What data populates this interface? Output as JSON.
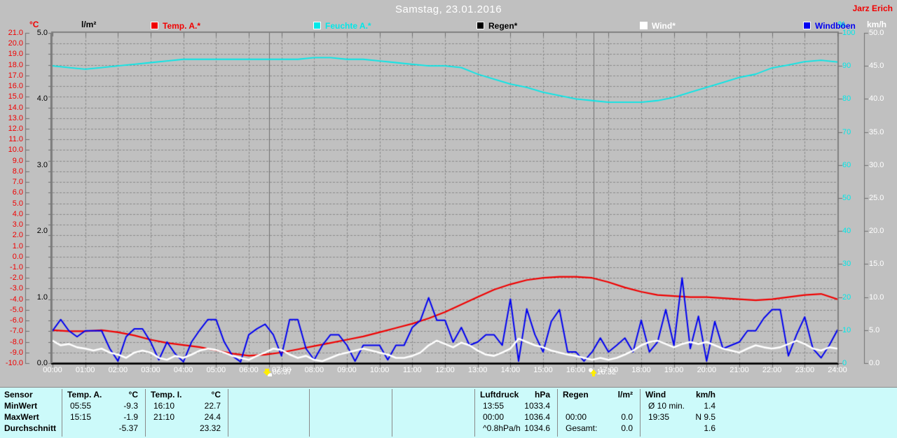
{
  "titlebar": {
    "title": "Samstag, 23.01.2016",
    "author": "Jarz Erich"
  },
  "legend": {
    "left_units": [
      {
        "text": "°C",
        "color": "#f00000"
      },
      {
        "text": "l/m²",
        "color": "#000000"
      }
    ],
    "right_units": [
      {
        "text": "%",
        "color": "#00e8e8"
      },
      {
        "text": "km/h",
        "color": "#ffffff"
      }
    ],
    "items": [
      {
        "label": "Temp. A.*",
        "color": "#f00000"
      },
      {
        "label": "Feuchte A.*",
        "color": "#00e8e8"
      },
      {
        "label": "Regen*",
        "color": "#000000"
      },
      {
        "label": "Wind*",
        "color": "#ffffff"
      },
      {
        "label": "Windböen",
        "color": "#0000f0"
      }
    ]
  },
  "axes": {
    "temp": {
      "color": "#f00000",
      "min": -10,
      "max": 21,
      "labels": [
        "21.0",
        "20.0",
        "19.0",
        "18.0",
        "17.0",
        "16.0",
        "15.0",
        "14.0",
        "13.0",
        "12.0",
        "11.0",
        "10.0",
        "9.0",
        "8.0",
        "7.0",
        "6.0",
        "5.0",
        "4.0",
        "3.0",
        "2.0",
        "1.0",
        "0.0",
        "-1.0",
        "-2.0",
        "-3.0",
        "-4.0",
        "-5.0",
        "-6.0",
        "-7.0",
        "-8.0",
        "-9.0",
        "-10.0"
      ]
    },
    "rain": {
      "color": "#000000",
      "min": 0,
      "max": 5,
      "labels": [
        "5.0",
        "4.0",
        "3.0",
        "2.0",
        "1.0",
        "0.0"
      ]
    },
    "humidity": {
      "color": "#00e8e8",
      "min": 0,
      "max": 100,
      "labels": [
        "100",
        "90",
        "80",
        "70",
        "60",
        "50",
        "40",
        "30",
        "20",
        "10",
        "0"
      ]
    },
    "wind": {
      "color": "#ffffff",
      "min": 0,
      "max": 50,
      "labels": [
        "50.0",
        "45.0",
        "40.0",
        "35.0",
        "30.0",
        "25.0",
        "20.0",
        "15.0",
        "10.0",
        "5.0",
        "0.0"
      ]
    },
    "x": {
      "labels": [
        "00:00",
        "01:00",
        "02:00",
        "03:00",
        "04:00",
        "05:00",
        "06:00",
        "07:00",
        "08:00",
        "09:00",
        "10:00",
        "11:00",
        "12:00",
        "13:00",
        "14:00",
        "15:00",
        "16:00",
        "17:00",
        "18:00",
        "19:00",
        "20:00",
        "21:00",
        "22:00",
        "23:00",
        "24:00"
      ]
    }
  },
  "markers": {
    "sunrise": {
      "time": "06:37",
      "hours": 6.617
    },
    "sunset": {
      "time": "16:32",
      "hours": 16.533
    }
  },
  "chart_data": {
    "type": "line",
    "title": "Samstag, 23.01.2016",
    "x_range_hours": [
      0,
      24
    ],
    "axis_ranges": {
      "temp_c": [
        -10,
        21
      ],
      "rain_lm2": [
        0,
        5
      ],
      "humidity_pct": [
        0,
        100
      ],
      "wind_kmh": [
        0,
        50
      ]
    },
    "grid": "dashed, hourly vertical + 1°C horizontal",
    "legend_position": "top",
    "series": [
      {
        "name": "Temp. A.*",
        "axis": "temp",
        "color": "#f00000",
        "step_hours": 0.5,
        "values": [
          -6.9,
          -7.0,
          -7.0,
          -6.9,
          -7.1,
          -7.4,
          -7.8,
          -8.1,
          -8.3,
          -8.5,
          -8.8,
          -9.1,
          -9.3,
          -9.2,
          -9.0,
          -8.7,
          -8.4,
          -8.1,
          -7.8,
          -7.5,
          -7.1,
          -6.7,
          -6.3,
          -5.8,
          -5.2,
          -4.5,
          -3.8,
          -3.1,
          -2.6,
          -2.2,
          -2.0,
          -1.9,
          -1.9,
          -2.0,
          -2.4,
          -2.9,
          -3.3,
          -3.6,
          -3.7,
          -3.8,
          -3.8,
          -3.9,
          -4.0,
          -4.1,
          -4.0,
          -3.8,
          -3.6,
          -3.5,
          -4.0
        ]
      },
      {
        "name": "Feuchte A.*",
        "axis": "humidity",
        "color": "#00e8e8",
        "step_hours": 0.5,
        "values": [
          90,
          89.5,
          89,
          89.5,
          90,
          90.5,
          91,
          91.5,
          92,
          92,
          92,
          92,
          92,
          92,
          92,
          92,
          92.5,
          92.5,
          92,
          92,
          91.5,
          91,
          90.5,
          90,
          90,
          89.5,
          87.5,
          86,
          84.5,
          83.5,
          82,
          81,
          80,
          79.5,
          79,
          79,
          79,
          79.5,
          80.5,
          82,
          83.5,
          85,
          86.5,
          87.5,
          89.4,
          90.3,
          91.3,
          91.7,
          91.2
        ]
      },
      {
        "name": "Regen*",
        "axis": "rain",
        "color": "#000000",
        "step_hours": 24,
        "values": [
          0,
          0
        ]
      },
      {
        "name": "Windböen",
        "axis": "wind",
        "color": "#0000f0",
        "step_hours": 0.25,
        "values": [
          4.9,
          6.6,
          4.9,
          4.0,
          4.9,
          4.9,
          4.9,
          2.2,
          0.3,
          4.0,
          5.2,
          5.2,
          3.2,
          0.5,
          3.2,
          1.4,
          0.2,
          3.2,
          5.0,
          6.6,
          6.6,
          3.2,
          1.1,
          0.2,
          4.3,
          5.2,
          5.9,
          4.3,
          1.1,
          6.6,
          6.6,
          2.2,
          0.5,
          2.7,
          4.3,
          4.3,
          2.7,
          0.3,
          2.7,
          2.7,
          2.7,
          0.5,
          2.7,
          2.7,
          5.4,
          6.5,
          9.9,
          6.5,
          6.5,
          3.2,
          5.4,
          2.7,
          3.2,
          4.3,
          4.3,
          2.7,
          9.7,
          0.3,
          8.2,
          4.3,
          1.7,
          6.3,
          8.1,
          1.7,
          1.7,
          0.3,
          1.7,
          3.8,
          1.7,
          2.7,
          3.8,
          1.7,
          6.5,
          1.7,
          3.2,
          8.1,
          2.7,
          12.9,
          2.2,
          7.1,
          0.3,
          6.3,
          2.2,
          2.7,
          3.2,
          4.9,
          4.9,
          6.8,
          8.1,
          8.1,
          1.1,
          4.3,
          7.0,
          2.2,
          0.8,
          2.7,
          5.0
        ]
      },
      {
        "name": "Wind*",
        "axis": "wind",
        "color": "#ffffff",
        "step_hours": 0.25,
        "values": [
          3.4,
          2.7,
          2.9,
          2.4,
          2.2,
          1.9,
          2.2,
          1.6,
          1.3,
          0.8,
          1.6,
          1.9,
          1.6,
          0.8,
          0.5,
          1.1,
          0.8,
          1.3,
          1.9,
          2.2,
          2.0,
          1.6,
          1.1,
          0.8,
          0.5,
          1.1,
          1.6,
          2.2,
          2.0,
          1.3,
          0.8,
          1.1,
          0.5,
          0.3,
          0.8,
          1.3,
          1.6,
          1.9,
          2.2,
          1.9,
          1.6,
          1.3,
          0.8,
          0.8,
          1.1,
          1.6,
          2.7,
          3.4,
          2.9,
          2.4,
          3.1,
          2.7,
          1.9,
          1.3,
          1.1,
          1.6,
          2.2,
          3.7,
          3.2,
          2.7,
          2.4,
          1.9,
          1.6,
          1.3,
          1.1,
          0.8,
          0.5,
          0.8,
          0.5,
          0.8,
          1.3,
          1.9,
          2.7,
          3.2,
          3.4,
          2.9,
          2.4,
          2.9,
          3.2,
          2.9,
          3.2,
          2.7,
          2.2,
          1.9,
          1.6,
          2.2,
          2.7,
          2.4,
          2.2,
          2.4,
          2.9,
          3.4,
          2.9,
          2.2,
          1.9,
          2.4,
          2.2
        ]
      }
    ]
  },
  "table": {
    "row_headers": [
      "Sensor",
      "MinWert",
      "MaxWert",
      "Durchschnitt"
    ],
    "columns": [
      {
        "name": "Temp. A.",
        "unit": "°C",
        "rows": [
          [
            "05:55",
            "-9.3"
          ],
          [
            "15:15",
            "-1.9"
          ],
          [
            "",
            "-5.37"
          ]
        ]
      },
      {
        "name": "Temp. I.",
        "unit": "°C",
        "rows": [
          [
            "16:10",
            "22.7"
          ],
          [
            "21:10",
            "24.4"
          ],
          [
            "",
            "23.32"
          ]
        ]
      },
      {
        "name": "",
        "unit": "",
        "rows": [
          [
            "",
            ""
          ],
          [
            "",
            ""
          ],
          [
            "",
            ""
          ]
        ]
      },
      {
        "name": "",
        "unit": "",
        "rows": [
          [
            "",
            ""
          ],
          [
            "",
            ""
          ],
          [
            "",
            ""
          ]
        ]
      },
      {
        "name": "",
        "unit": "",
        "rows": [
          [
            "",
            ""
          ],
          [
            "",
            ""
          ],
          [
            "",
            ""
          ]
        ]
      },
      {
        "name": "Luftdruck",
        "unit": "hPa",
        "rows": [
          [
            "13:55",
            "1033.4"
          ],
          [
            "00:00",
            "1036.4"
          ],
          [
            "^0.8hPa/h",
            "1034.6"
          ]
        ]
      },
      {
        "name": "Regen",
        "unit": "l/m²",
        "rows": [
          [
            "",
            ""
          ],
          [
            "00:00",
            "0.0"
          ],
          [
            "Gesamt:",
            "0.0"
          ]
        ]
      },
      {
        "name": "Wind",
        "unit": "km/h",
        "rows": [
          [
            "Ø 10 min.",
            "1.4"
          ],
          [
            "19:35",
            "N 9.5"
          ],
          [
            "",
            "1.6"
          ]
        ]
      },
      {
        "name": "",
        "unit": "",
        "rows": [
          [
            "",
            ""
          ],
          [
            "",
            ""
          ],
          [
            "",
            ""
          ]
        ]
      }
    ]
  }
}
